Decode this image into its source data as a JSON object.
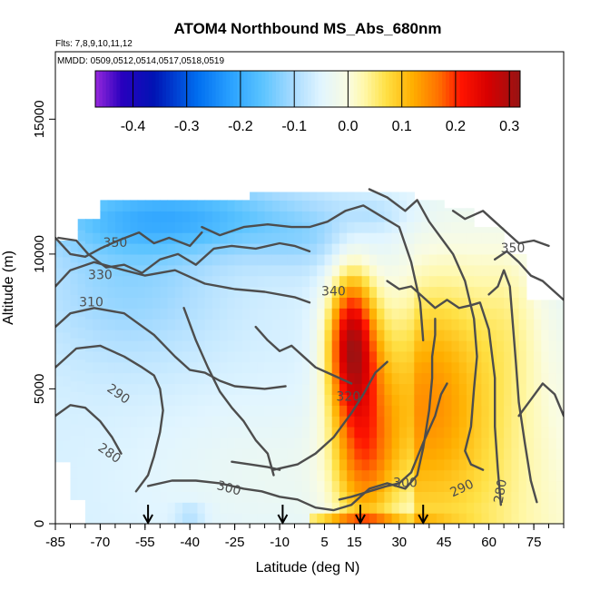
{
  "chart_data": {
    "type": "heatmap",
    "title": "ATOM4 Northbound MS_Abs_680nm",
    "flights_note": "Flts: 7,8,9,10,11,12",
    "dates_note": "MMDD: 0509,0512,0514,0517,0518,0519",
    "xlabel": "Latitude (deg N)",
    "ylabel": "Altitude (m)",
    "xlim": [
      -85,
      85
    ],
    "ylim": [
      0,
      17500
    ],
    "x_ticks": [
      -85,
      -70,
      -55,
      -40,
      -25,
      -10,
      5,
      15,
      30,
      45,
      60,
      75
    ],
    "y_ticks": [
      0,
      5000,
      10000,
      15000
    ],
    "colorbar": {
      "range": [
        -0.47,
        0.32
      ],
      "ticks": [
        "-0.4",
        "-0.3",
        "-0.2",
        "-0.1",
        "0.0",
        "0.1",
        "0.2",
        "0.3"
      ],
      "tick_values": [
        -0.4,
        -0.3,
        -0.2,
        -0.1,
        0.0,
        0.1,
        0.2,
        0.3
      ]
    },
    "arrows_latitude": [
      -54,
      -9,
      17,
      38
    ],
    "contour_labels": [
      "350",
      "330",
      "310",
      "290",
      "280",
      "340",
      "320",
      "300",
      "300",
      "290",
      "280",
      "350"
    ]
  }
}
